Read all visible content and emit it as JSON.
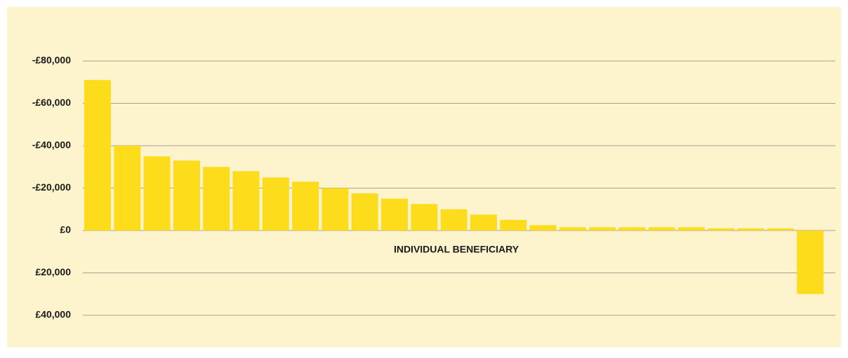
{
  "chart_data": {
    "type": "bar",
    "x_label": "INDIVIDUAL BENEFICIARY",
    "values": [
      -71000,
      -40000,
      -35000,
      -33000,
      -30000,
      -28000,
      -25000,
      -23000,
      -20000,
      -17500,
      -15000,
      -12500,
      -10000,
      -7500,
      -5000,
      -2500,
      -1500,
      -1500,
      -1500,
      -1500,
      -1500,
      -1000,
      -1000,
      -1000,
      30000
    ],
    "color": "#fddc1c",
    "background": "#fdf3cc",
    "ylim": [
      40000,
      -80000
    ],
    "yticks": [
      {
        "value": -80000,
        "label": "-£80,000"
      },
      {
        "value": -60000,
        "label": "-£60,000"
      },
      {
        "value": -40000,
        "label": "-£40,000"
      },
      {
        "value": -20000,
        "label": "-£20,000"
      },
      {
        "value": 0,
        "label": "£0"
      },
      {
        "value": 20000,
        "label": "£20,000"
      },
      {
        "value": 40000,
        "label": "£40,000"
      }
    ],
    "grid": true
  }
}
